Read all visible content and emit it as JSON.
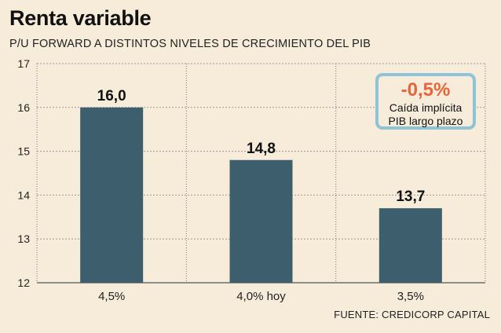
{
  "chart_data": {
    "type": "bar",
    "title": "Renta variable",
    "subtitle": "P/U FORWARD A DISTINTOS NIVELES DE CRECIMIENTO DEL PIB",
    "categories": [
      "4,5%",
      "4,0% hoy",
      "3,5%"
    ],
    "values": [
      16.0,
      14.8,
      13.7
    ],
    "value_labels": [
      "16,0",
      "14,8",
      "13,7"
    ],
    "ylim": [
      12,
      17
    ],
    "yticks": [
      12,
      13,
      14,
      15,
      16,
      17
    ],
    "grid": true,
    "bar_color": "#3d5e6c",
    "source": "FUENTE: CREDICORP CAPITAL"
  },
  "callout": {
    "value": "-0,5%",
    "line1": "Caída implícita",
    "line2": "PIB largo plazo",
    "value_color": "#e8643a",
    "border_color": "#8fc3d6"
  }
}
